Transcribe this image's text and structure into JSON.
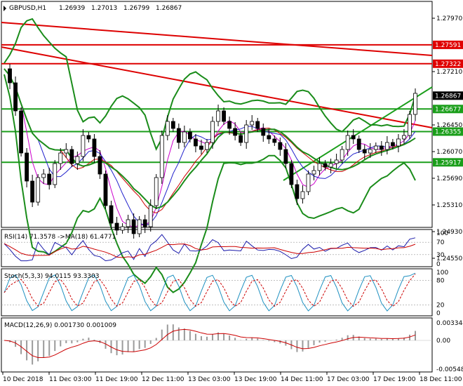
{
  "header": {
    "symbol": "GBPUSD,H1",
    "open": "1.26939",
    "high": "1.27013",
    "low": "1.26799",
    "close": "1.26867"
  },
  "price_axis": {
    "ticks": [
      "1.27970",
      "1.27210",
      "1.26450",
      "1.26070",
      "1.25690",
      "1.25310",
      "1.24930",
      "1.24550"
    ],
    "tags": [
      {
        "label": "1.27591",
        "color": "#e00000",
        "text_color": "#ffffff"
      },
      {
        "label": "1.27322",
        "color": "#e00000",
        "text_color": "#ffffff"
      },
      {
        "label": "1.26867",
        "color": "#000000",
        "text_color": "#ffffff"
      },
      {
        "label": "1.26677",
        "color": "#1a9e1a",
        "text_color": "#ffffff"
      },
      {
        "label": "1.26355",
        "color": "#1a9e1a",
        "text_color": "#ffffff"
      },
      {
        "label": "1.25917",
        "color": "#1a9e1a",
        "text_color": "#ffffff"
      }
    ]
  },
  "time_axis": [
    "10 Dec 2018",
    "11 Dec 03:00",
    "11 Dec 19:00",
    "12 Dec 11:00",
    "13 Dec 03:00",
    "13 Dec 19:00",
    "14 Dec 11:00",
    "17 Dec 03:00",
    "17 Dec 19:00",
    "18 Dec 11:00"
  ],
  "rsi": {
    "label": "RSI(14) 71.3578  ->MA(18) 61.4771",
    "ticks": [
      "100",
      "70",
      "30",
      "0"
    ]
  },
  "stoch": {
    "label": "Stoch(5,3,3) 94.0115 93.3303",
    "ticks": [
      "100",
      "80",
      "20",
      "0"
    ]
  },
  "macd": {
    "label": "MACD(12,26,9) 0.001730 0.001009",
    "ticks": [
      "0.003344",
      "0.00",
      "-0.005483"
    ]
  },
  "colors": {
    "candle_up": "#ffffff",
    "candle_down": "#000000",
    "bollinger": "#1a8c1a",
    "trend_red": "#dd0000",
    "support_green": "#1a9e1a",
    "ma_red": "#cc0000",
    "ma_blue": "#2020cc",
    "ma_magenta": "#cc00cc",
    "rsi_line": "#1a1aaa",
    "rsi_ma": "#cc0000",
    "stoch_main": "#1e90c0",
    "stoch_signal": "#cc0000",
    "macd_hist": "#9a9a9a",
    "macd_signal": "#cc0000"
  },
  "chart_data": {
    "type": "candlestick",
    "title": "GBPUSD,H1",
    "ylim": [
      1.2443,
      1.2815
    ],
    "horizontal_levels": [
      1.27591,
      1.27322,
      1.26677,
      1.26355,
      1.25917
    ],
    "last_price": 1.26867,
    "price_path": [
      1.2725,
      1.2705,
      1.2665,
      1.2605,
      1.2565,
      1.2535,
      1.257,
      1.2575,
      1.256,
      1.259,
      1.2605,
      1.261,
      1.259,
      1.26,
      1.263,
      1.2625,
      1.26,
      1.2575,
      1.253,
      1.2505,
      1.2495,
      1.25,
      1.251,
      1.249,
      1.251,
      1.25,
      1.253,
      1.257,
      1.263,
      1.265,
      1.264,
      1.262,
      1.2635,
      1.2625,
      1.2615,
      1.261,
      1.262,
      1.265,
      1.2665,
      1.265,
      1.264,
      1.263,
      1.262,
      1.2645,
      1.265,
      1.264,
      1.263,
      1.2625,
      1.262,
      1.261,
      1.259,
      1.256,
      1.254,
      1.255,
      1.2575,
      1.258,
      1.259,
      1.2585,
      1.259,
      1.2595,
      1.261,
      1.263,
      1.2625,
      1.261,
      1.2605,
      1.261,
      1.2615,
      1.261,
      1.262,
      1.2615,
      1.2625,
      1.263,
      1.266,
      1.269
    ],
    "indicators": {
      "rsi": {
        "value": 71.3578,
        "ma": 61.4771,
        "levels": [
          70,
          30
        ]
      },
      "stochastic": {
        "k": 94.0115,
        "d": 93.3303,
        "levels": [
          80,
          20
        ]
      },
      "macd": {
        "main": 0.00173,
        "signal": 0.001009,
        "range": [
          -0.005483,
          0.003344
        ]
      }
    }
  }
}
